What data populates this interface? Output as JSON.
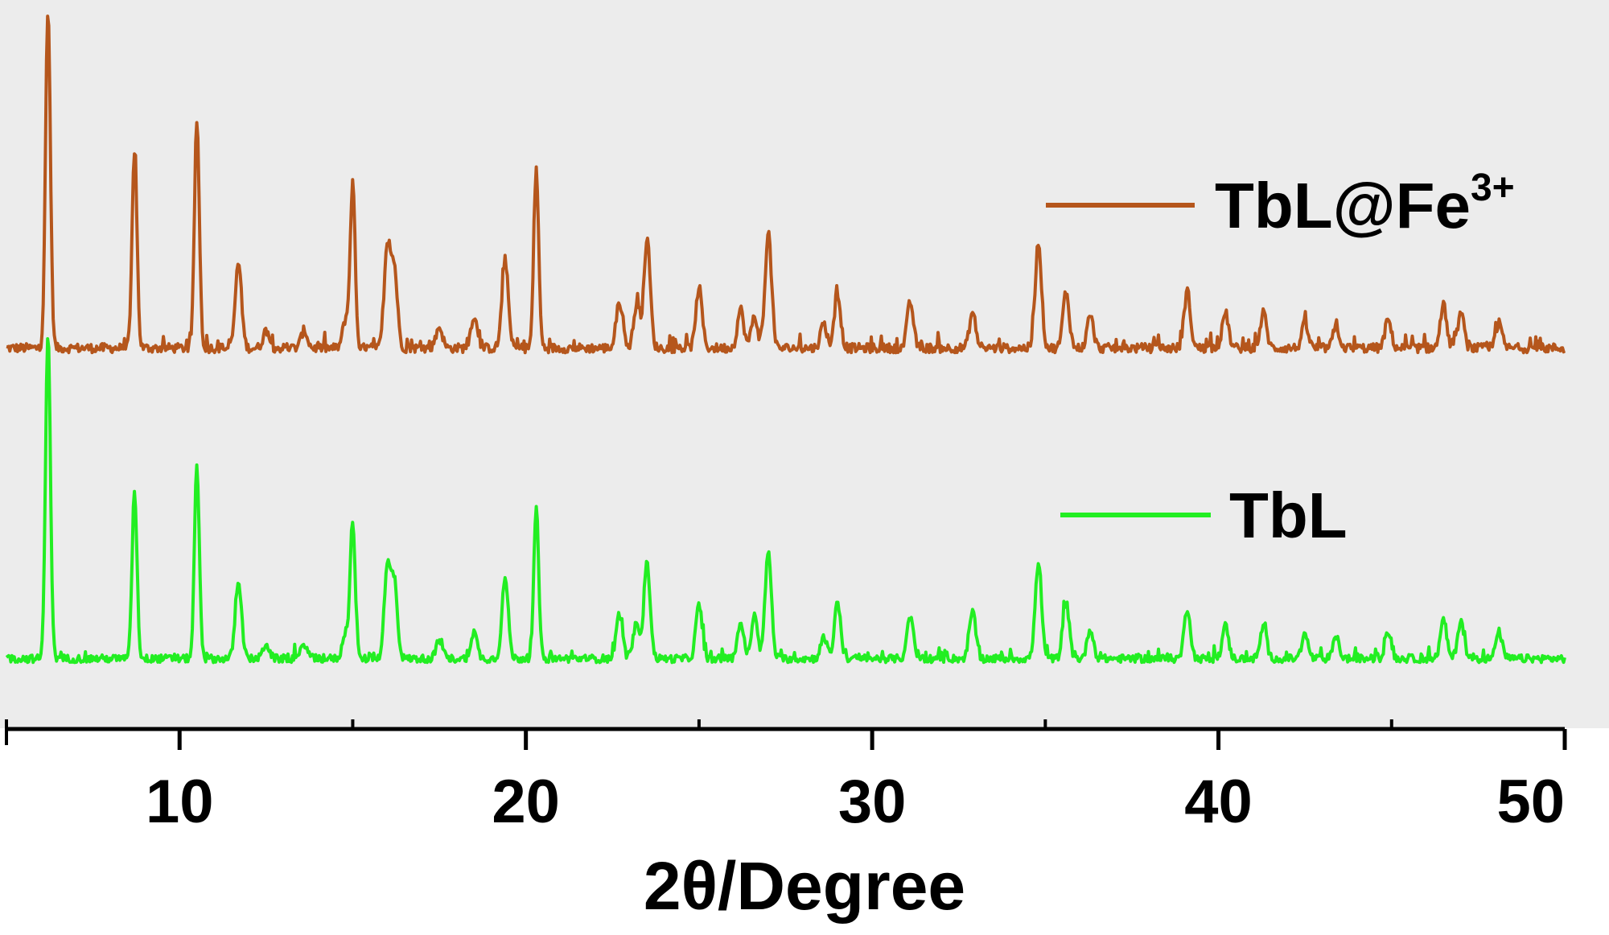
{
  "chart_data": {
    "type": "line",
    "xlabel": "2θ/Degree",
    "ylabel": "",
    "xlim": [
      5,
      50
    ],
    "xticks": [
      10,
      20,
      30,
      40,
      50
    ],
    "minor_xticks": [
      5,
      15,
      25,
      35,
      45
    ],
    "yaxis_shown": false,
    "grid": false,
    "background": "#ececec",
    "legend_placement": "right, beside each trace",
    "intensity_units": "arbitrary (offset stacked traces)",
    "series": [
      {
        "name": "TbL@Fe",
        "name_superscript": "3+",
        "color": "#b5561c",
        "baseline": 0.85,
        "noise": 0.13,
        "peaks": [
          {
            "x": 6.2,
            "height": 9.5
          },
          {
            "x": 8.7,
            "height": 5.6
          },
          {
            "x": 10.5,
            "height": 6.4
          },
          {
            "x": 11.7,
            "height": 2.4
          },
          {
            "x": 12.5,
            "height": 0.5
          },
          {
            "x": 13.6,
            "height": 0.5
          },
          {
            "x": 14.8,
            "height": 0.8
          },
          {
            "x": 15.0,
            "height": 4.6
          },
          {
            "x": 16.0,
            "height": 2.8
          },
          {
            "x": 16.2,
            "height": 2.2
          },
          {
            "x": 17.5,
            "height": 0.6
          },
          {
            "x": 18.5,
            "height": 0.9
          },
          {
            "x": 19.4,
            "height": 2.5
          },
          {
            "x": 20.3,
            "height": 5.0
          },
          {
            "x": 22.7,
            "height": 1.3
          },
          {
            "x": 23.2,
            "height": 1.2
          },
          {
            "x": 23.5,
            "height": 3.1
          },
          {
            "x": 25.0,
            "height": 1.7
          },
          {
            "x": 26.2,
            "height": 1.1
          },
          {
            "x": 26.6,
            "height": 0.9
          },
          {
            "x": 27.0,
            "height": 3.3
          },
          {
            "x": 28.6,
            "height": 0.7
          },
          {
            "x": 29.0,
            "height": 1.5
          },
          {
            "x": 31.1,
            "height": 1.3
          },
          {
            "x": 32.9,
            "height": 1.0
          },
          {
            "x": 34.8,
            "height": 3.0
          },
          {
            "x": 35.6,
            "height": 1.6
          },
          {
            "x": 36.3,
            "height": 0.9
          },
          {
            "x": 39.1,
            "height": 1.6
          },
          {
            "x": 40.2,
            "height": 1.0
          },
          {
            "x": 41.3,
            "height": 1.0
          },
          {
            "x": 42.5,
            "height": 0.7
          },
          {
            "x": 43.4,
            "height": 0.6
          },
          {
            "x": 44.9,
            "height": 0.8
          },
          {
            "x": 46.5,
            "height": 1.2
          },
          {
            "x": 47.0,
            "height": 1.0
          },
          {
            "x": 48.1,
            "height": 0.7
          }
        ]
      },
      {
        "name": "TbL",
        "name_superscript": "",
        "color": "#22ee22",
        "baseline": 0.85,
        "noise": 0.13,
        "peaks": [
          {
            "x": 6.2,
            "height": 11.0
          },
          {
            "x": 8.7,
            "height": 5.6
          },
          {
            "x": 10.5,
            "height": 6.4
          },
          {
            "x": 11.7,
            "height": 2.6
          },
          {
            "x": 12.5,
            "height": 0.5
          },
          {
            "x": 13.6,
            "height": 0.5
          },
          {
            "x": 14.8,
            "height": 0.9
          },
          {
            "x": 15.0,
            "height": 4.6
          },
          {
            "x": 16.0,
            "height": 3.0
          },
          {
            "x": 16.2,
            "height": 2.5
          },
          {
            "x": 17.5,
            "height": 0.6
          },
          {
            "x": 18.5,
            "height": 0.9
          },
          {
            "x": 19.4,
            "height": 2.7
          },
          {
            "x": 20.3,
            "height": 5.0
          },
          {
            "x": 22.7,
            "height": 1.5
          },
          {
            "x": 23.2,
            "height": 1.2
          },
          {
            "x": 23.5,
            "height": 3.2
          },
          {
            "x": 25.0,
            "height": 1.8
          },
          {
            "x": 26.2,
            "height": 1.2
          },
          {
            "x": 26.6,
            "height": 1.4
          },
          {
            "x": 27.0,
            "height": 3.6
          },
          {
            "x": 28.6,
            "height": 0.7
          },
          {
            "x": 29.0,
            "height": 1.9
          },
          {
            "x": 31.1,
            "height": 1.4
          },
          {
            "x": 32.9,
            "height": 1.6
          },
          {
            "x": 34.8,
            "height": 3.2
          },
          {
            "x": 35.6,
            "height": 1.9
          },
          {
            "x": 36.3,
            "height": 1.0
          },
          {
            "x": 39.1,
            "height": 1.7
          },
          {
            "x": 40.2,
            "height": 1.1
          },
          {
            "x": 41.3,
            "height": 1.1
          },
          {
            "x": 42.5,
            "height": 0.8
          },
          {
            "x": 43.4,
            "height": 0.7
          },
          {
            "x": 44.9,
            "height": 0.9
          },
          {
            "x": 46.5,
            "height": 1.3
          },
          {
            "x": 47.0,
            "height": 1.3
          },
          {
            "x": 48.1,
            "height": 0.9
          }
        ]
      }
    ]
  }
}
